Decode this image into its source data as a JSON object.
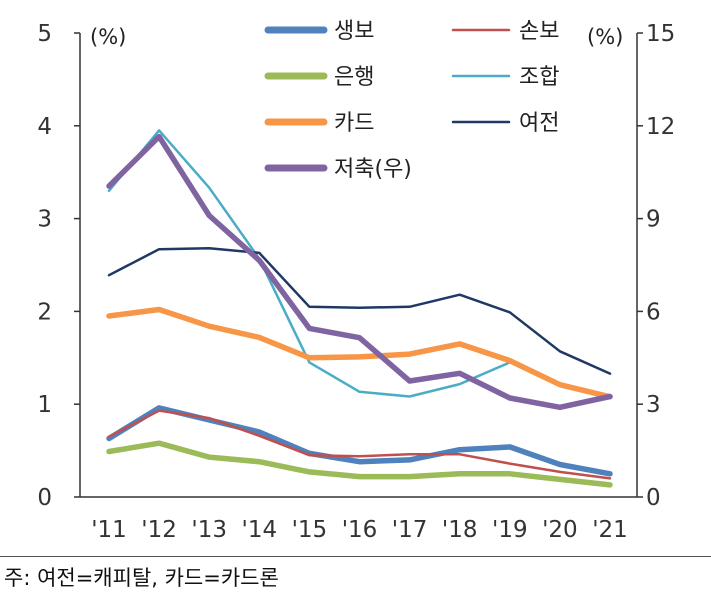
{
  "chart_data": {
    "type": "line",
    "x": [
      "'11",
      "'12",
      "'13",
      "'14",
      "'15",
      "'16",
      "'17",
      "'18",
      "'19",
      "'20",
      "'21"
    ],
    "y_left": {
      "label": "(%)",
      "ticks": [
        "0",
        "1",
        "2",
        "3",
        "4",
        "5"
      ],
      "lim": [
        0,
        5
      ]
    },
    "y_right": {
      "label": "(%)",
      "ticks": [
        "0",
        "3",
        "6",
        "9",
        "12",
        "15"
      ],
      "lim": [
        0,
        15
      ]
    },
    "grid": false,
    "legend": "top-center",
    "series": [
      {
        "name": "생보",
        "axis": "left",
        "color": "#4F81BD",
        "width": "thick",
        "values": [
          0.63,
          0.96,
          0.83,
          0.7,
          0.47,
          0.38,
          0.4,
          0.51,
          0.54,
          0.35,
          0.25
        ]
      },
      {
        "name": "손보",
        "axis": "left",
        "color": "#C0504D",
        "width": "thin",
        "values": [
          0.65,
          0.93,
          0.85,
          0.66,
          0.45,
          0.44,
          0.46,
          0.46,
          0.36,
          0.27,
          0.2
        ]
      },
      {
        "name": "은행",
        "axis": "left",
        "color": "#9BBB59",
        "width": "thick",
        "values": [
          0.49,
          0.58,
          0.43,
          0.38,
          0.27,
          0.22,
          0.22,
          0.25,
          0.25,
          0.19,
          0.13
        ]
      },
      {
        "name": "조합",
        "axis": "right",
        "color": "#4BACC6",
        "width": "thin",
        "values": [
          9.9,
          11.85,
          10.0,
          7.7,
          4.35,
          3.4,
          3.25,
          3.65,
          4.35,
          null,
          2.55
        ]
      },
      {
        "name": "카드",
        "axis": "left",
        "color": "#F79646",
        "width": "thick",
        "values": [
          1.95,
          2.02,
          1.84,
          1.72,
          1.5,
          1.51,
          1.54,
          1.65,
          1.47,
          1.21,
          1.08
        ]
      },
      {
        "name": "여전",
        "axis": "left",
        "color": "#1F3864",
        "width": "thin",
        "values": [
          2.39,
          2.67,
          2.68,
          2.63,
          2.05,
          2.04,
          2.05,
          2.18,
          1.99,
          1.57,
          1.33
        ]
      },
      {
        "name": "저축(우)",
        "axis": "right",
        "color": "#8064A2",
        "width": "thick",
        "values": [
          10.05,
          11.65,
          9.1,
          7.65,
          5.45,
          5.15,
          3.75,
          4.0,
          3.2,
          2.9,
          3.25
        ]
      }
    ]
  },
  "footnote": "주: 여전=캐피탈, 카드=카드론"
}
